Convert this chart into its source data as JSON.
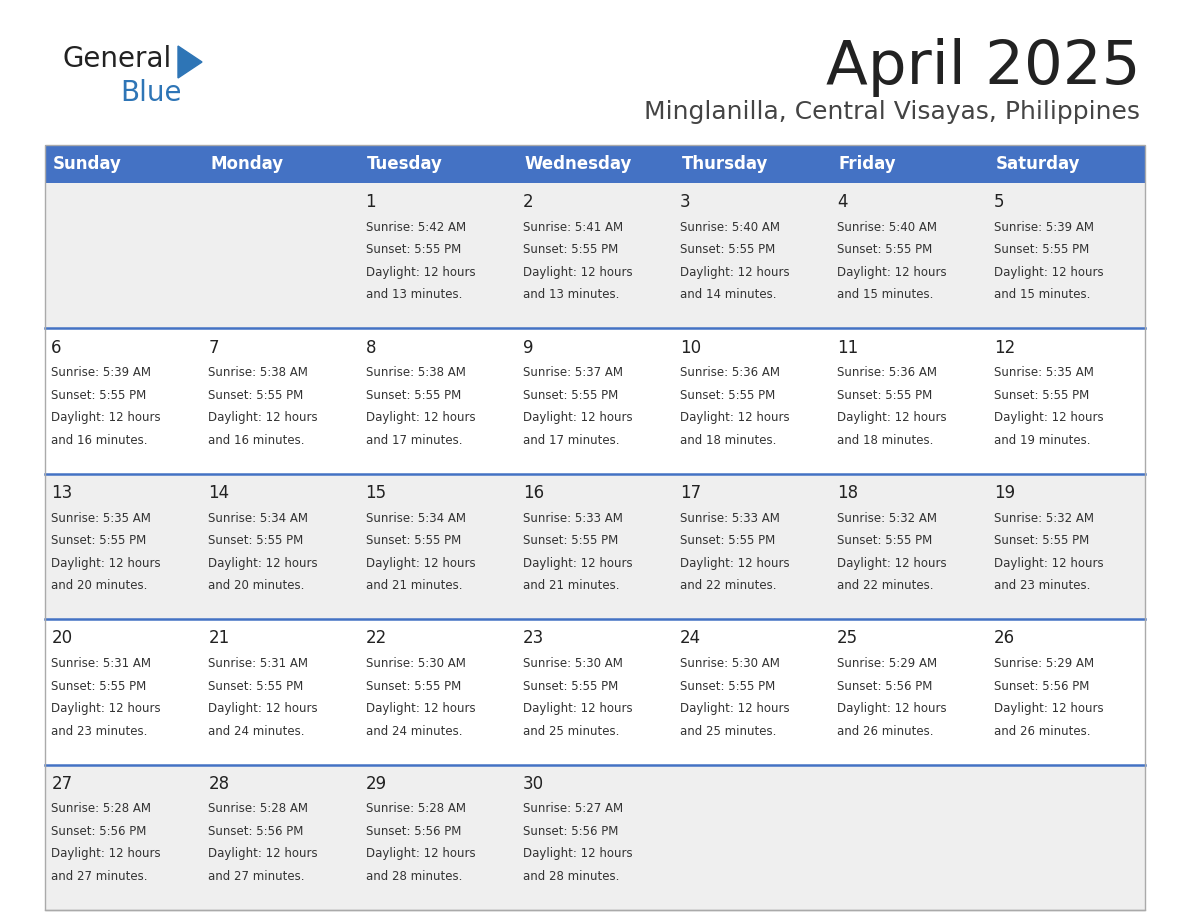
{
  "title": "April 2025",
  "subtitle": "Minglanilla, Central Visayas, Philippines",
  "days_of_week": [
    "Sunday",
    "Monday",
    "Tuesday",
    "Wednesday",
    "Thursday",
    "Friday",
    "Saturday"
  ],
  "header_bg": "#4472C4",
  "header_text": "#FFFFFF",
  "row_bg_odd": "#EFEFEF",
  "row_bg_even": "#FFFFFF",
  "cell_border_color": "#4472C4",
  "outer_border_color": "#AAAAAA",
  "day_num_color": "#222222",
  "text_color": "#333333",
  "title_color": "#222222",
  "subtitle_color": "#444444",
  "logo_general_color": "#222222",
  "logo_blue_color": "#2E75B6",
  "triangle_color": "#2E75B6",
  "calendar_data": [
    [
      null,
      null,
      {
        "day": 1,
        "sunrise": "5:42 AM",
        "sunset": "5:55 PM",
        "daylight": "12 hours and 13 minutes"
      },
      {
        "day": 2,
        "sunrise": "5:41 AM",
        "sunset": "5:55 PM",
        "daylight": "12 hours and 13 minutes"
      },
      {
        "day": 3,
        "sunrise": "5:40 AM",
        "sunset": "5:55 PM",
        "daylight": "12 hours and 14 minutes"
      },
      {
        "day": 4,
        "sunrise": "5:40 AM",
        "sunset": "5:55 PM",
        "daylight": "12 hours and 15 minutes"
      },
      {
        "day": 5,
        "sunrise": "5:39 AM",
        "sunset": "5:55 PM",
        "daylight": "12 hours and 15 minutes"
      }
    ],
    [
      {
        "day": 6,
        "sunrise": "5:39 AM",
        "sunset": "5:55 PM",
        "daylight": "12 hours and 16 minutes"
      },
      {
        "day": 7,
        "sunrise": "5:38 AM",
        "sunset": "5:55 PM",
        "daylight": "12 hours and 16 minutes"
      },
      {
        "day": 8,
        "sunrise": "5:38 AM",
        "sunset": "5:55 PM",
        "daylight": "12 hours and 17 minutes"
      },
      {
        "day": 9,
        "sunrise": "5:37 AM",
        "sunset": "5:55 PM",
        "daylight": "12 hours and 17 minutes"
      },
      {
        "day": 10,
        "sunrise": "5:36 AM",
        "sunset": "5:55 PM",
        "daylight": "12 hours and 18 minutes"
      },
      {
        "day": 11,
        "sunrise": "5:36 AM",
        "sunset": "5:55 PM",
        "daylight": "12 hours and 18 minutes"
      },
      {
        "day": 12,
        "sunrise": "5:35 AM",
        "sunset": "5:55 PM",
        "daylight": "12 hours and 19 minutes"
      }
    ],
    [
      {
        "day": 13,
        "sunrise": "5:35 AM",
        "sunset": "5:55 PM",
        "daylight": "12 hours and 20 minutes"
      },
      {
        "day": 14,
        "sunrise": "5:34 AM",
        "sunset": "5:55 PM",
        "daylight": "12 hours and 20 minutes"
      },
      {
        "day": 15,
        "sunrise": "5:34 AM",
        "sunset": "5:55 PM",
        "daylight": "12 hours and 21 minutes"
      },
      {
        "day": 16,
        "sunrise": "5:33 AM",
        "sunset": "5:55 PM",
        "daylight": "12 hours and 21 minutes"
      },
      {
        "day": 17,
        "sunrise": "5:33 AM",
        "sunset": "5:55 PM",
        "daylight": "12 hours and 22 minutes"
      },
      {
        "day": 18,
        "sunrise": "5:32 AM",
        "sunset": "5:55 PM",
        "daylight": "12 hours and 22 minutes"
      },
      {
        "day": 19,
        "sunrise": "5:32 AM",
        "sunset": "5:55 PM",
        "daylight": "12 hours and 23 minutes"
      }
    ],
    [
      {
        "day": 20,
        "sunrise": "5:31 AM",
        "sunset": "5:55 PM",
        "daylight": "12 hours and 23 minutes"
      },
      {
        "day": 21,
        "sunrise": "5:31 AM",
        "sunset": "5:55 PM",
        "daylight": "12 hours and 24 minutes"
      },
      {
        "day": 22,
        "sunrise": "5:30 AM",
        "sunset": "5:55 PM",
        "daylight": "12 hours and 24 minutes"
      },
      {
        "day": 23,
        "sunrise": "5:30 AM",
        "sunset": "5:55 PM",
        "daylight": "12 hours and 25 minutes"
      },
      {
        "day": 24,
        "sunrise": "5:30 AM",
        "sunset": "5:55 PM",
        "daylight": "12 hours and 25 minutes"
      },
      {
        "day": 25,
        "sunrise": "5:29 AM",
        "sunset": "5:56 PM",
        "daylight": "12 hours and 26 minutes"
      },
      {
        "day": 26,
        "sunrise": "5:29 AM",
        "sunset": "5:56 PM",
        "daylight": "12 hours and 26 minutes"
      }
    ],
    [
      {
        "day": 27,
        "sunrise": "5:28 AM",
        "sunset": "5:56 PM",
        "daylight": "12 hours and 27 minutes"
      },
      {
        "day": 28,
        "sunrise": "5:28 AM",
        "sunset": "5:56 PM",
        "daylight": "12 hours and 27 minutes"
      },
      {
        "day": 29,
        "sunrise": "5:28 AM",
        "sunset": "5:56 PM",
        "daylight": "12 hours and 28 minutes"
      },
      {
        "day": 30,
        "sunrise": "5:27 AM",
        "sunset": "5:56 PM",
        "daylight": "12 hours and 28 minutes"
      },
      null,
      null,
      null
    ]
  ]
}
